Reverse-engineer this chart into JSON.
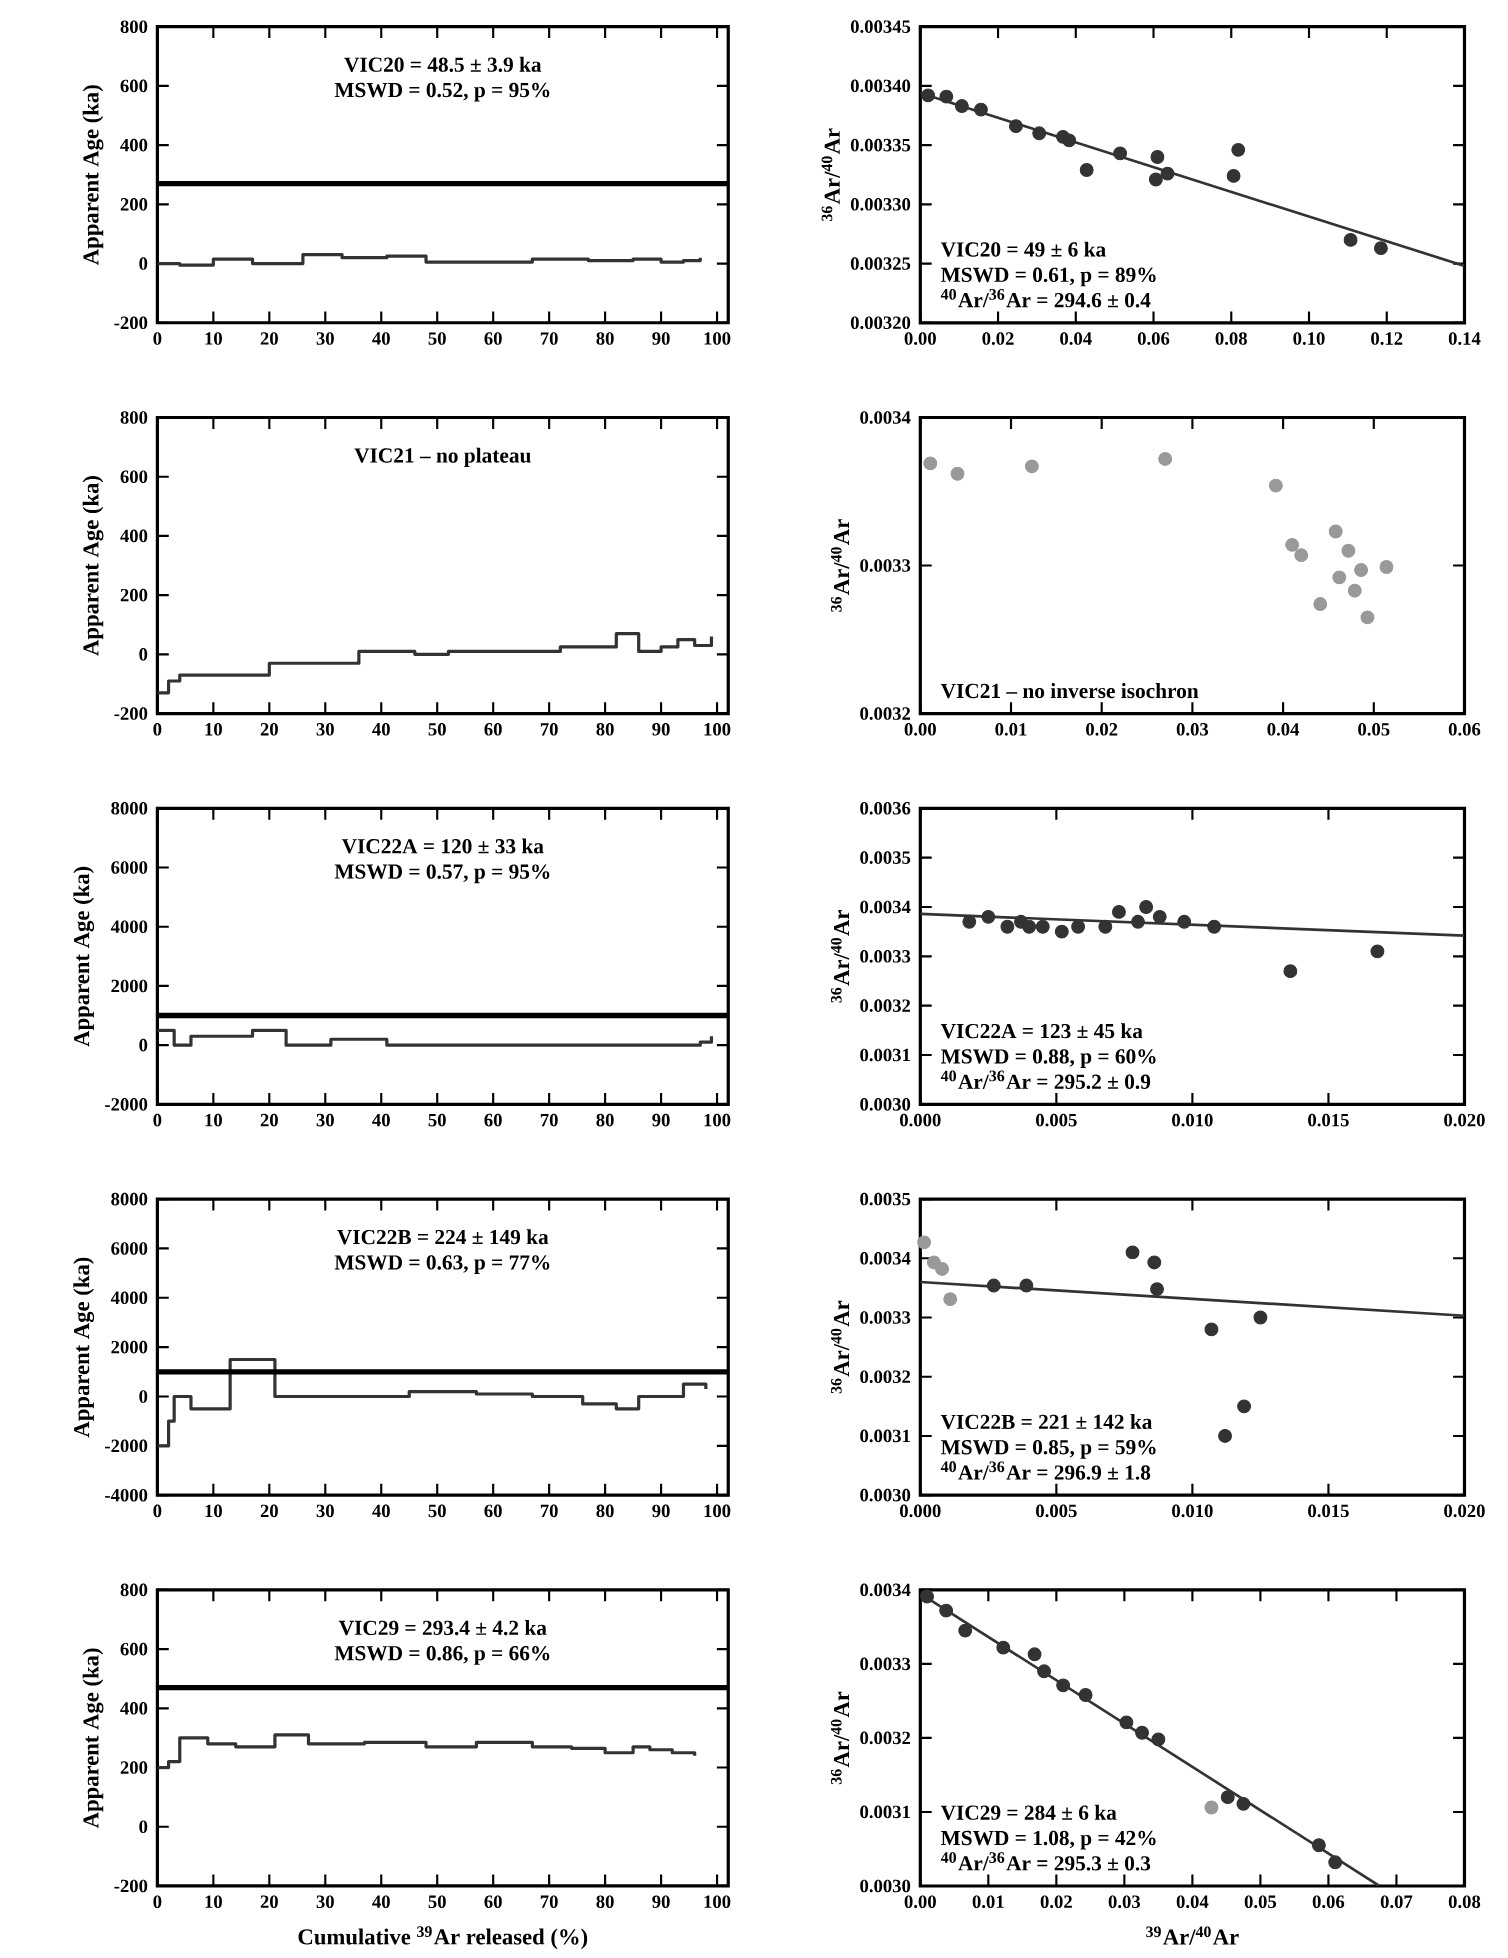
{
  "chart_data": [
    {
      "type": "step",
      "ylabel": "Apparent Age (ka)",
      "xlim": [
        0,
        102
      ],
      "ylim": [
        -200,
        800
      ],
      "xticks": [
        0,
        10,
        20,
        30,
        40,
        50,
        60,
        70,
        80,
        90,
        100
      ],
      "yticks": [
        -200,
        0,
        200,
        400,
        600,
        800
      ],
      "annotations": [
        "VIC20 = 48.5 ± 3.9 ka",
        "MSWD = 0.52, p = 95%"
      ],
      "ref_lines": [
        {
          "axis": "y",
          "value": 270,
          "color": "#000000"
        }
      ],
      "series": [
        {
          "color": "#333333",
          "x": [
            0,
            4,
            10,
            17,
            26,
            33,
            41,
            48,
            57,
            67,
            77,
            85,
            90,
            94,
            97
          ],
          "values": [
            0,
            -5,
            15,
            0,
            30,
            20,
            25,
            5,
            5,
            15,
            10,
            15,
            5,
            10,
            20
          ]
        }
      ]
    },
    {
      "type": "scatter",
      "marker": "circle",
      "ylabel": "$^{36}$Ar/$^{40}$Ar",
      "xlim": [
        0,
        0.14
      ],
      "ylim": [
        0.0032,
        0.00345
      ],
      "xticks": [
        {
          "value": 0,
          "label": "0.00"
        },
        0.02,
        0.04,
        0.06,
        0.08,
        {
          "value": 0.1,
          "label": "0.10"
        },
        0.12,
        0.14
      ],
      "yticks": [
        {
          "value": 0.0032,
          "label": "0.00320"
        },
        0.00325,
        {
          "value": 0.0033,
          "label": "0.00330"
        },
        0.00335,
        {
          "value": 0.0034,
          "label": "0.00340"
        },
        0.00345
      ],
      "annotations": [
        "VIC20 = 49 ± 6 ka",
        "MSWD = 0.61, p = 89%",
        "$^{40}$Ar/$^{36}$Ar = 294.6 ± 0.4"
      ],
      "series": [
        {
          "color": "#333333",
          "x": [
            0.002,
            0.0067,
            0.0107,
            0.0156,
            0.0246,
            0.0306,
            0.0367,
            0.0383,
            0.0428,
            0.0514,
            0.061,
            0.0606,
            0.0636,
            0.0818,
            0.0806,
            0.1107,
            0.1185
          ],
          "values": [
            0.003392,
            0.003391,
            0.003383,
            0.00338,
            0.003366,
            0.00336,
            0.003357,
            0.003354,
            0.003329,
            0.003343,
            0.00334,
            0.003321,
            0.003326,
            0.003346,
            0.003324,
            0.00327,
            0.003263
          ]
        },
        {
          "type": "line",
          "marker": "none",
          "color": "#333333",
          "x": [
            0,
            0.14
          ],
          "values": [
            0.003394,
            0.003248
          ]
        }
      ]
    },
    {
      "type": "step",
      "ylabel": "Apparent Age (ka)",
      "xlim": [
        0,
        102
      ],
      "ylim": [
        -200,
        800
      ],
      "xticks": [
        0,
        10,
        20,
        30,
        40,
        50,
        60,
        70,
        80,
        90,
        100
      ],
      "yticks": [
        -200,
        0,
        200,
        400,
        600,
        800
      ],
      "annotations": [
        "VIC21 – no plateau"
      ],
      "series": [
        {
          "color": "#333333",
          "x": [
            0,
            2,
            4,
            20,
            36,
            46,
            52,
            72,
            82,
            86,
            90,
            93,
            96,
            99
          ],
          "values": [
            -130,
            -90,
            -70,
            -30,
            10,
            0,
            10,
            25,
            70,
            10,
            25,
            50,
            30,
            60
          ]
        }
      ]
    },
    {
      "type": "scatter",
      "marker": "circle",
      "ylabel": "$^{36}$Ar/$^{40}$Ar",
      "xlim": [
        0,
        0.06
      ],
      "ylim": [
        0.0032,
        0.0034
      ],
      "xticks": [
        {
          "value": 0,
          "label": "0.00"
        },
        0.01,
        0.02,
        0.03,
        0.04,
        0.05,
        0.06
      ],
      "yticks": [
        0.0032,
        0.0033,
        0.0034
      ],
      "annotations": [
        "VIC21 – no inverse isochron"
      ],
      "series": [
        {
          "color": "#999999",
          "x": [
            0.0011,
            0.0041,
            0.0123,
            0.027,
            0.0392,
            0.041,
            0.042,
            0.0441,
            0.0458,
            0.0462,
            0.0472,
            0.0479,
            0.0486,
            0.0493,
            0.0514
          ],
          "values": [
            0.003369,
            0.003362,
            0.003367,
            0.003372,
            0.003354,
            0.003314,
            0.003307,
            0.003274,
            0.003323,
            0.003292,
            0.00331,
            0.003283,
            0.003297,
            0.003265,
            0.003299
          ]
        }
      ]
    },
    {
      "type": "step",
      "ylabel": "Apparent Age (ka)",
      "xlim": [
        0,
        102
      ],
      "ylim": [
        -2000,
        8000
      ],
      "xticks": [
        0,
        10,
        20,
        30,
        40,
        50,
        60,
        70,
        80,
        90,
        100
      ],
      "yticks": [
        -2000,
        0,
        2000,
        4000,
        6000,
        8000
      ],
      "annotations": [
        "VIC22A = 120 ± 33 ka",
        "MSWD = 0.57, p = 95%"
      ],
      "ref_lines": [
        {
          "axis": "y",
          "value": 1000,
          "color": "#000000"
        }
      ],
      "series": [
        {
          "color": "#333333",
          "x": [
            0,
            3,
            6,
            9,
            13,
            17,
            23,
            31,
            41,
            54,
            97,
            99
          ],
          "values": [
            500,
            0,
            300,
            300,
            300,
            500,
            0,
            200,
            0,
            0,
            100,
            300
          ]
        }
      ]
    },
    {
      "type": "scatter",
      "marker": "circle",
      "ylabel": "$^{36}$Ar/$^{40}$Ar",
      "xlim": [
        0,
        0.02
      ],
      "ylim": [
        0.003,
        0.0036
      ],
      "xticks": [
        {
          "value": 0,
          "label": "0.000"
        },
        {
          "value": 0.005,
          "label": "0.005"
        },
        {
          "value": 0.01,
          "label": "0.010"
        },
        {
          "value": 0.015,
          "label": "0.015"
        },
        {
          "value": 0.02,
          "label": "0.020"
        }
      ],
      "yticks": [
        {
          "value": 0.003,
          "label": "0.0030"
        },
        0.0031,
        0.0032,
        0.0033,
        0.0034,
        0.0035,
        0.0036
      ],
      "annotations": [
        "VIC22A = 123 ± 45 ka",
        "MSWD = 0.88, p = 60%",
        "$^{40}$Ar/$^{36}$Ar = 295.2 ± 0.9"
      ],
      "series": [
        {
          "color": "#333333",
          "x": [
            0.0018,
            0.0025,
            0.0032,
            0.0037,
            0.004,
            0.0045,
            0.0052,
            0.0058,
            0.0068,
            0.0073,
            0.008,
            0.0083,
            0.0088,
            0.0097,
            0.0108,
            0.0136,
            0.0168
          ],
          "values": [
            0.00337,
            0.00338,
            0.00336,
            0.00337,
            0.00336,
            0.00336,
            0.00335,
            0.00336,
            0.00336,
            0.00339,
            0.00337,
            0.0034,
            0.00338,
            0.00337,
            0.00336,
            0.00327,
            0.00331
          ]
        },
        {
          "type": "line",
          "marker": "none",
          "color": "#333333",
          "x": [
            0,
            0.02
          ],
          "values": [
            0.003386,
            0.003342
          ]
        }
      ]
    },
    {
      "type": "step",
      "ylabel": "Apparent Age (ka)",
      "xlim": [
        0,
        102
      ],
      "ylim": [
        -4000,
        8000
      ],
      "xticks": [
        0,
        10,
        20,
        30,
        40,
        50,
        60,
        70,
        80,
        90,
        100
      ],
      "yticks": [
        -4000,
        -2000,
        0,
        2000,
        4000,
        6000,
        8000
      ],
      "annotations": [
        "VIC22B = 224 ± 149 ka",
        "MSWD = 0.63, p = 77%"
      ],
      "ref_lines": [
        {
          "axis": "y",
          "value": 1000,
          "color": "#000000"
        }
      ],
      "series": [
        {
          "color": "#333333",
          "x": [
            0,
            2,
            3,
            6,
            10,
            13,
            21,
            32,
            45,
            57,
            67,
            76,
            82,
            86,
            94,
            98
          ],
          "values": [
            -2000,
            -1000,
            0,
            -500,
            -500,
            1500,
            0,
            0,
            200,
            100,
            0,
            -300,
            -500,
            0,
            500,
            300
          ]
        }
      ]
    },
    {
      "type": "scatter",
      "marker": "circle",
      "ylabel": "$^{36}$Ar/$^{40}$Ar",
      "xlim": [
        0,
        0.02
      ],
      "ylim": [
        0.003,
        0.0035
      ],
      "xticks": [
        {
          "value": 0,
          "label": "0.000"
        },
        {
          "value": 0.005,
          "label": "0.005"
        },
        {
          "value": 0.01,
          "label": "0.010"
        },
        {
          "value": 0.015,
          "label": "0.015"
        },
        {
          "value": 0.02,
          "label": "0.020"
        }
      ],
      "yticks": [
        {
          "value": 0.003,
          "label": "0.0030"
        },
        0.0031,
        0.0032,
        0.0033,
        0.0034,
        0.0035
      ],
      "annotations": [
        "VIC22B = 221 ± 142 ka",
        "MSWD = 0.85, p = 59%",
        "$^{40}$Ar/$^{36}$Ar = 296.9 ± 1.8"
      ],
      "series": [
        {
          "color": "#999999",
          "x": [
            0.00014,
            0.0005,
            0.0008,
            0.0011
          ],
          "values": [
            0.003427,
            0.003393,
            0.003382,
            0.003331
          ]
        },
        {
          "color": "#333333",
          "x": [
            0.0027,
            0.0039,
            0.0078,
            0.0086,
            0.0087,
            0.0107,
            0.0112,
            0.0119,
            0.0125
          ],
          "values": [
            0.003354,
            0.003354,
            0.00341,
            0.003393,
            0.003348,
            0.00328,
            0.0031,
            0.00315,
            0.0033
          ]
        },
        {
          "type": "line",
          "marker": "none",
          "color": "#333333",
          "x": [
            0,
            0.02
          ],
          "values": [
            0.00336,
            0.003303
          ]
        }
      ]
    },
    {
      "type": "step",
      "ylabel": "Apparent Age (ka)",
      "xlabel": "Cumulative $^{39}$Ar released (%)",
      "xlim": [
        0,
        102
      ],
      "ylim": [
        -200,
        800
      ],
      "xticks": [
        0,
        10,
        20,
        30,
        40,
        50,
        60,
        70,
        80,
        90,
        100
      ],
      "yticks": [
        -200,
        0,
        200,
        400,
        600,
        800
      ],
      "annotations": [
        "VIC29 = 293.4 ± 4.2 ka",
        "MSWD = 0.86, p = 66%"
      ],
      "ref_lines": [
        {
          "axis": "y",
          "value": 470,
          "color": "#000000"
        }
      ],
      "series": [
        {
          "color": "#333333",
          "x": [
            0,
            2,
            4,
            9,
            14,
            21,
            27,
            37,
            48,
            57,
            67,
            74,
            80,
            85,
            88,
            92,
            96
          ],
          "values": [
            200,
            220,
            300,
            280,
            270,
            310,
            280,
            285,
            270,
            285,
            270,
            265,
            250,
            270,
            260,
            250,
            240
          ]
        }
      ]
    },
    {
      "type": "scatter",
      "marker": "circle",
      "ylabel": "$^{36}$Ar/$^{40}$Ar",
      "xlabel": "$^{39}$Ar/$^{40}$Ar",
      "xlim": [
        0,
        0.08
      ],
      "ylim": [
        0.003,
        0.0034
      ],
      "xticks": [
        {
          "value": 0,
          "label": "0.00"
        },
        0.01,
        0.02,
        0.03,
        0.04,
        0.05,
        0.06,
        0.07,
        0.08
      ],
      "yticks": [
        {
          "value": 0.003,
          "label": "0.0030"
        },
        0.0031,
        0.0032,
        0.0033,
        0.0034
      ],
      "annotations": [
        "VIC29 = 284 ± 6 ka",
        "MSWD = 1.08, p = 42%",
        "$^{40}$Ar/$^{36}$Ar = 295.3 ± 0.3"
      ],
      "series": [
        {
          "color": "#333333",
          "x": [
            0.001,
            0.0038,
            0.0066,
            0.0122,
            0.0168,
            0.0182,
            0.021,
            0.0243,
            0.0303,
            0.0326,
            0.035,
            0.0452,
            0.0475,
            0.0586,
            0.061
          ],
          "values": [
            0.003391,
            0.003372,
            0.003345,
            0.003322,
            0.003313,
            0.00329,
            0.003271,
            0.003258,
            0.003221,
            0.003207,
            0.003198,
            0.00312,
            0.003111,
            0.003055,
            0.003032
          ]
        },
        {
          "color": "#999999",
          "x": [
            0.0428
          ],
          "values": [
            0.003106
          ]
        },
        {
          "type": "line",
          "marker": "none",
          "color": "#333333",
          "x": [
            0,
            0.0675
          ],
          "values": [
            0.003395,
            0.003
          ]
        }
      ]
    }
  ]
}
